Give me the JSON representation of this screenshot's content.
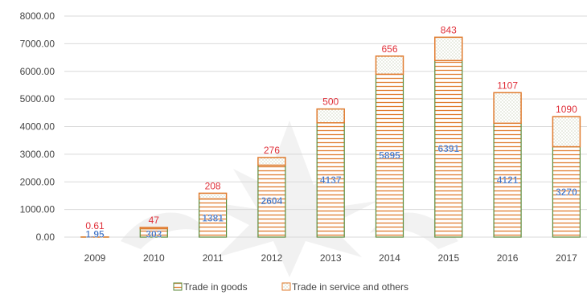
{
  "chart_data": {
    "type": "bar",
    "stacked": true,
    "categories": [
      "2009",
      "2010",
      "2011",
      "2012",
      "2013",
      "2014",
      "2015",
      "2016",
      "2017"
    ],
    "series": [
      {
        "name": "Trade in goods",
        "values": [
          1.95,
          303,
          1381,
          2604,
          4137,
          5895,
          6391,
          4121,
          3270
        ],
        "labels": [
          "1.95",
          "303",
          "1381",
          "2604",
          "4137",
          "5895",
          "6391",
          "4121",
          "3270"
        ],
        "label_color": "#3a6fc4",
        "stroke": "#5b8a3a",
        "hatch": "#e07b2e"
      },
      {
        "name": "Trade in service and others",
        "values": [
          0.61,
          47,
          208,
          276,
          500,
          656,
          843,
          1107,
          1090
        ],
        "labels": [
          "0.61",
          "47",
          "208",
          "276",
          "500",
          "656",
          "843",
          "1107",
          "1090"
        ],
        "label_color": "#e0303a",
        "stroke": "#e07b2e",
        "dots": "#9aa77a"
      }
    ],
    "yticks": [
      "0.00",
      "1000.00",
      "2000.00",
      "3000.00",
      "4000.00",
      "5000.00",
      "6000.00",
      "7000.00",
      "8000.00"
    ],
    "ylim": [
      0,
      8000
    ],
    "grid": true,
    "legend": "bottom",
    "title": "",
    "xlabel": "",
    "ylabel": ""
  }
}
